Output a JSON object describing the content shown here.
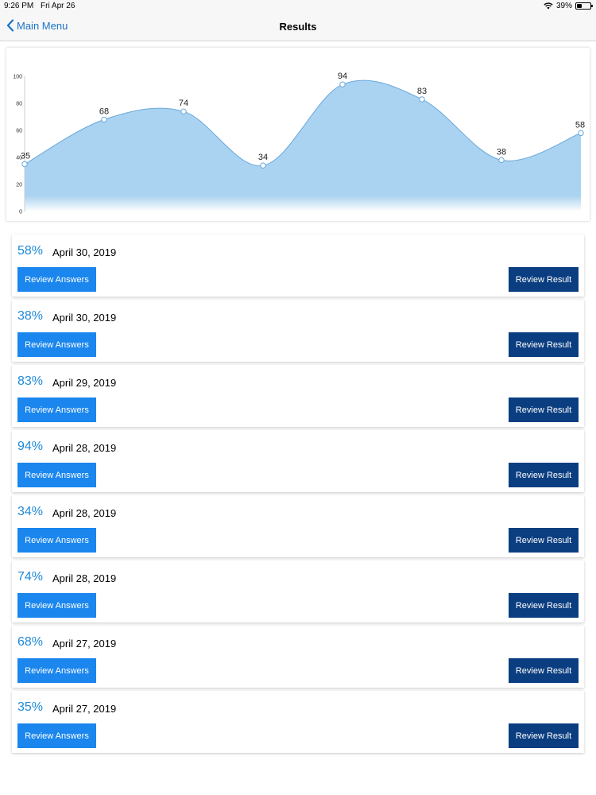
{
  "status_bar": {
    "time": "9:26 PM",
    "date": "Fri Apr 26",
    "battery": "39%",
    "battery_level": 0.39
  },
  "nav": {
    "back_label": "Main Menu",
    "title": "Results"
  },
  "chart_data": {
    "type": "area",
    "x": [
      1,
      2,
      3,
      4,
      5,
      6,
      7,
      8
    ],
    "values": [
      35,
      68,
      74,
      34,
      94,
      83,
      38,
      58
    ],
    "ylim": [
      0,
      100
    ],
    "yticks": [
      0,
      20,
      40,
      60,
      80,
      100
    ],
    "title": "",
    "xlabel": "",
    "ylabel": "",
    "grid": false,
    "legend": "none",
    "fill_color": "#a9d3f0",
    "line_color": "#6aa8dc",
    "point_color": "#ffffff"
  },
  "buttons": {
    "review_answers": "Review Answers",
    "review_result": "Review Result"
  },
  "results": [
    {
      "score": "58%",
      "date": "April 30, 2019"
    },
    {
      "score": "38%",
      "date": "April 30, 2019"
    },
    {
      "score": "83%",
      "date": "April 29, 2019"
    },
    {
      "score": "94%",
      "date": "April 28, 2019"
    },
    {
      "score": "34%",
      "date": "April 28, 2019"
    },
    {
      "score": "74%",
      "date": "April 28, 2019"
    },
    {
      "score": "68%",
      "date": "April 27, 2019"
    },
    {
      "score": "35%",
      "date": "April 27, 2019"
    }
  ],
  "colors": {
    "accent": "#1a86ee",
    "dark_button": "#0b3e80",
    "score_text": "#1f8ad8",
    "nav_link": "#1a73c8"
  }
}
